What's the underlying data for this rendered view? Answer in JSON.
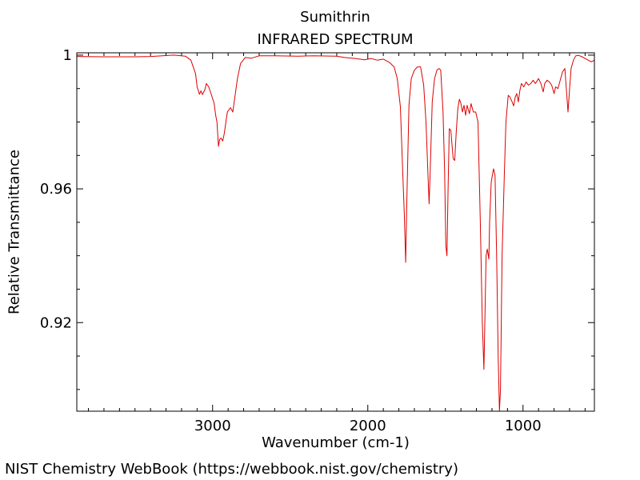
{
  "chart_data": {
    "type": "line",
    "title": "Sumithrin",
    "subtitle": "INFRARED SPECTRUM",
    "xlabel": "Wavenumber (cm-1)",
    "ylabel": "Relative Transmittance",
    "xlim": [
      3875,
      540
    ],
    "ylim": [
      0.8935,
      1.0007
    ],
    "x_ticks": [
      3000,
      2000,
      1000
    ],
    "x_tick_labels": [
      "3000",
      "2000",
      "1000"
    ],
    "y_ticks": [
      1.0,
      0.96,
      0.92
    ],
    "y_tick_labels": [
      "1",
      "0.96",
      "0.92"
    ],
    "grid": false,
    "series": [
      {
        "color": "#dd0000",
        "points": [
          [
            3875,
            0.9996
          ],
          [
            3700,
            0.9995
          ],
          [
            3500,
            0.9995
          ],
          [
            3400,
            0.9996
          ],
          [
            3250,
            1.0
          ],
          [
            3175,
            0.9997
          ],
          [
            3140,
            0.9985
          ],
          [
            3110,
            0.9945
          ],
          [
            3100,
            0.9905
          ],
          [
            3085,
            0.9883
          ],
          [
            3075,
            0.9893
          ],
          [
            3065,
            0.9882
          ],
          [
            3050,
            0.9897
          ],
          [
            3040,
            0.9915
          ],
          [
            3025,
            0.9905
          ],
          [
            3010,
            0.9885
          ],
          [
            2990,
            0.9855
          ],
          [
            2980,
            0.982
          ],
          [
            2972,
            0.98
          ],
          [
            2962,
            0.9727
          ],
          [
            2955,
            0.9748
          ],
          [
            2945,
            0.9752
          ],
          [
            2935,
            0.9743
          ],
          [
            2925,
            0.9765
          ],
          [
            2905,
            0.983
          ],
          [
            2885,
            0.9843
          ],
          [
            2870,
            0.983
          ],
          [
            2855,
            0.988
          ],
          [
            2840,
            0.993
          ],
          [
            2820,
            0.9975
          ],
          [
            2790,
            0.9993
          ],
          [
            2750,
            0.9991
          ],
          [
            2700,
            0.9998
          ],
          [
            2600,
            0.9998
          ],
          [
            2450,
            0.9997
          ],
          [
            2350,
            0.9998
          ],
          [
            2200,
            0.9997
          ],
          [
            2150,
            0.9993
          ],
          [
            2080,
            0.999
          ],
          [
            2020,
            0.9986
          ],
          [
            1980,
            0.999
          ],
          [
            1940,
            0.9985
          ],
          [
            1900,
            0.9988
          ],
          [
            1860,
            0.9978
          ],
          [
            1830,
            0.9965
          ],
          [
            1810,
            0.993
          ],
          [
            1790,
            0.9845
          ],
          [
            1775,
            0.965
          ],
          [
            1765,
            0.953
          ],
          [
            1756,
            0.938
          ],
          [
            1748,
            0.957
          ],
          [
            1735,
            0.985
          ],
          [
            1720,
            0.993
          ],
          [
            1700,
            0.9955
          ],
          [
            1680,
            0.9965
          ],
          [
            1660,
            0.9965
          ],
          [
            1640,
            0.991
          ],
          [
            1625,
            0.98
          ],
          [
            1612,
            0.964
          ],
          [
            1605,
            0.9555
          ],
          [
            1598,
            0.965
          ],
          [
            1585,
            0.986
          ],
          [
            1570,
            0.993
          ],
          [
            1555,
            0.9955
          ],
          [
            1540,
            0.996
          ],
          [
            1530,
            0.9955
          ],
          [
            1515,
            0.983
          ],
          [
            1505,
            0.965
          ],
          [
            1497,
            0.943
          ],
          [
            1490,
            0.94
          ],
          [
            1483,
            0.96
          ],
          [
            1475,
            0.978
          ],
          [
            1465,
            0.9775
          ],
          [
            1450,
            0.969
          ],
          [
            1440,
            0.9685
          ],
          [
            1430,
            0.977
          ],
          [
            1420,
            0.984
          ],
          [
            1410,
            0.9868
          ],
          [
            1400,
            0.9855
          ],
          [
            1390,
            0.983
          ],
          [
            1380,
            0.985
          ],
          [
            1370,
            0.982
          ],
          [
            1360,
            0.985
          ],
          [
            1345,
            0.9825
          ],
          [
            1335,
            0.9855
          ],
          [
            1320,
            0.983
          ],
          [
            1305,
            0.983
          ],
          [
            1290,
            0.98
          ],
          [
            1275,
            0.95
          ],
          [
            1262,
            0.92
          ],
          [
            1252,
            0.906
          ],
          [
            1245,
            0.922
          ],
          [
            1238,
            0.94
          ],
          [
            1230,
            0.942
          ],
          [
            1220,
            0.939
          ],
          [
            1215,
            0.95
          ],
          [
            1205,
            0.962
          ],
          [
            1190,
            0.966
          ],
          [
            1180,
            0.964
          ],
          [
            1170,
            0.94
          ],
          [
            1160,
            0.91
          ],
          [
            1152,
            0.8935
          ],
          [
            1145,
            0.9
          ],
          [
            1135,
            0.94
          ],
          [
            1120,
            0.965
          ],
          [
            1110,
            0.98
          ],
          [
            1095,
            0.988
          ],
          [
            1085,
            0.9875
          ],
          [
            1070,
            0.986
          ],
          [
            1060,
            0.9848
          ],
          [
            1050,
            0.9875
          ],
          [
            1040,
            0.9885
          ],
          [
            1030,
            0.986
          ],
          [
            1020,
            0.9895
          ],
          [
            1010,
            0.9915
          ],
          [
            995,
            0.9905
          ],
          [
            980,
            0.992
          ],
          [
            965,
            0.991
          ],
          [
            950,
            0.9915
          ],
          [
            935,
            0.9925
          ],
          [
            920,
            0.9915
          ],
          [
            900,
            0.993
          ],
          [
            885,
            0.9915
          ],
          [
            870,
            0.989
          ],
          [
            860,
            0.9915
          ],
          [
            845,
            0.9925
          ],
          [
            830,
            0.992
          ],
          [
            815,
            0.991
          ],
          [
            800,
            0.9885
          ],
          [
            790,
            0.9905
          ],
          [
            775,
            0.99
          ],
          [
            760,
            0.9925
          ],
          [
            745,
            0.995
          ],
          [
            730,
            0.996
          ],
          [
            718,
            0.988
          ],
          [
            710,
            0.983
          ],
          [
            700,
            0.99
          ],
          [
            690,
            0.996
          ],
          [
            675,
            0.9985
          ],
          [
            660,
            0.9998
          ],
          [
            640,
            0.9999
          ],
          [
            620,
            0.9995
          ],
          [
            600,
            0.999
          ],
          [
            580,
            0.9985
          ],
          [
            560,
            0.998
          ],
          [
            540,
            0.9985
          ]
        ]
      }
    ]
  },
  "footer": "NIST Chemistry WebBook (https://webbook.nist.gov/chemistry)"
}
